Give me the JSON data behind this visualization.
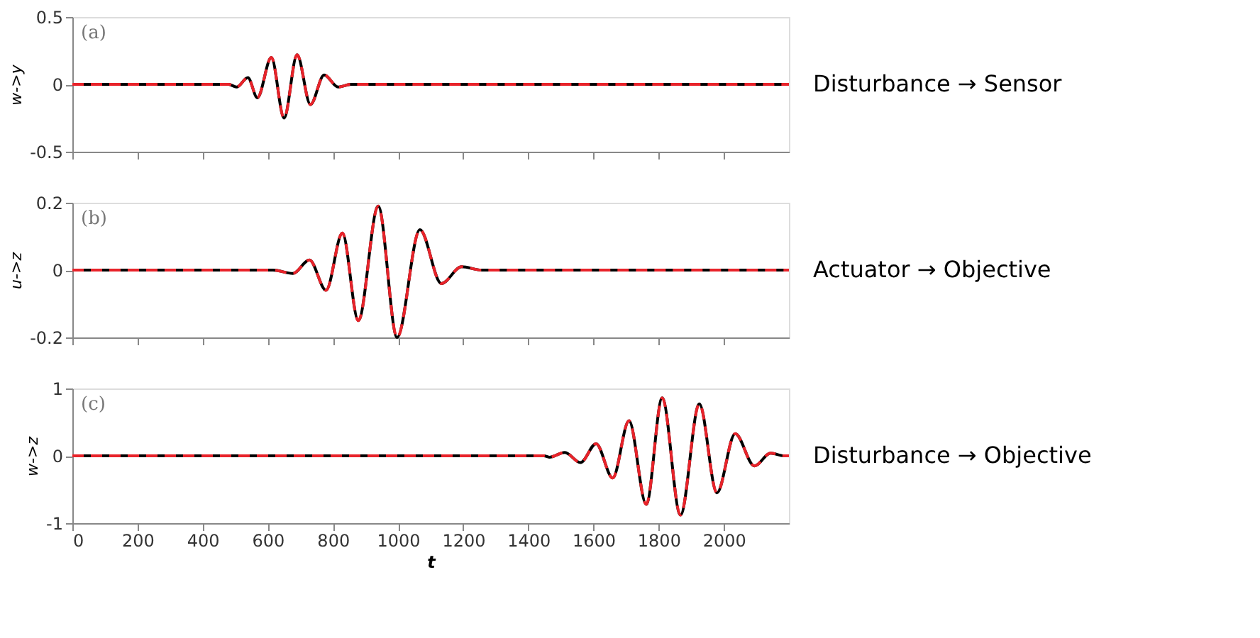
{
  "chart_data": [
    {
      "type": "line",
      "ylabel": "w->y",
      "annotations": [
        "(a)",
        "Disturbance → Sensor"
      ],
      "xlim": [
        0,
        2200
      ],
      "ylim": [
        -0.5,
        0.5
      ],
      "xticks": [
        0,
        200,
        400,
        600,
        800,
        1000,
        1200,
        1400,
        1600,
        1800,
        2000
      ],
      "yticks": [
        -0.5,
        0,
        0.5
      ],
      "tick_labels": "y",
      "grid": false,
      "x": [
        0,
        480,
        504,
        539,
        568,
        611,
        650,
        690,
        731,
        773,
        816,
        856,
        2200
      ],
      "series": [
        {
          "color": "#000000",
          "line_style": "solid",
          "values": [
            0,
            0,
            -0.02,
            0.05,
            -0.1,
            0.2,
            -0.25,
            0.22,
            -0.15,
            0.07,
            -0.02,
            0,
            0
          ]
        },
        {
          "color": "#e8232a",
          "line_style": "dashed",
          "values": [
            0,
            0,
            -0.02,
            0.05,
            -0.1,
            0.2,
            -0.25,
            0.22,
            -0.15,
            0.07,
            -0.02,
            0,
            0
          ]
        }
      ]
    },
    {
      "type": "line",
      "ylabel": "u->z",
      "annotations": [
        "(b)",
        "Actuator → Objective"
      ],
      "xlim": [
        0,
        2200
      ],
      "ylim": [
        -0.2,
        0.2
      ],
      "xticks": [
        0,
        200,
        400,
        600,
        800,
        1000,
        1200,
        1400,
        1600,
        1800,
        2000
      ],
      "yticks": [
        -0.2,
        0,
        0.2
      ],
      "tick_labels": "y",
      "grid": false,
      "x": [
        0,
        616,
        677,
        728,
        779,
        829,
        878,
        939,
        997,
        1067,
        1133,
        1195,
        1256,
        2200
      ],
      "series": [
        {
          "color": "#000000",
          "line_style": "solid",
          "values": [
            0,
            0,
            -0.01,
            0.03,
            -0.06,
            0.11,
            -0.15,
            0.19,
            -0.2,
            0.12,
            -0.04,
            0.01,
            0,
            0
          ]
        },
        {
          "color": "#e8232a",
          "line_style": "dashed",
          "values": [
            0,
            0,
            -0.01,
            0.03,
            -0.06,
            0.11,
            -0.15,
            0.19,
            -0.2,
            0.12,
            -0.04,
            0.01,
            0,
            0
          ]
        }
      ]
    },
    {
      "type": "line",
      "xlabel": "t",
      "ylabel": "w->z",
      "annotations": [
        "(c)",
        "Disturbance → Objective"
      ],
      "xlim": [
        0,
        2200
      ],
      "ylim": [
        -1,
        1
      ],
      "xticks": [
        0,
        200,
        400,
        600,
        800,
        1000,
        1200,
        1400,
        1600,
        1800,
        2000
      ],
      "yticks": [
        -1,
        0,
        1
      ],
      "grid": false,
      "x": [
        0,
        1448,
        1464,
        1512,
        1560,
        1608,
        1659,
        1709,
        1762,
        1811,
        1867,
        1925,
        1979,
        2035,
        2094,
        2144,
        2184,
        2200
      ],
      "series": [
        {
          "color": "#000000",
          "line_style": "solid",
          "values": [
            0,
            0,
            -0.02,
            0.05,
            -0.1,
            0.18,
            -0.33,
            0.52,
            -0.72,
            0.86,
            -0.88,
            0.77,
            -0.55,
            0.33,
            -0.15,
            0.04,
            0,
            0
          ]
        },
        {
          "color": "#e8232a",
          "line_style": "dashed",
          "values": [
            0,
            0,
            -0.02,
            0.05,
            -0.1,
            0.18,
            -0.33,
            0.52,
            -0.72,
            0.86,
            -0.88,
            0.77,
            -0.55,
            0.33,
            -0.15,
            0.04,
            0,
            0
          ]
        }
      ]
    }
  ]
}
